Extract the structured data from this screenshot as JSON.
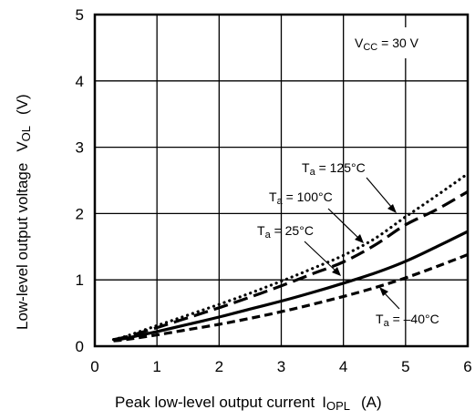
{
  "chart_data": {
    "type": "line",
    "xlabel": {
      "main": "Peak low-level output current",
      "symbol": "I",
      "symbol_sub": "OPL",
      "unit": "(A)"
    },
    "ylabel": {
      "main": "Low-level output voltage",
      "symbol": "V",
      "symbol_sub": "OL",
      "unit": "(V)"
    },
    "xlim": [
      0,
      6
    ],
    "ylim": [
      0,
      5
    ],
    "x_ticks": [
      "0",
      "1",
      "2",
      "3",
      "4",
      "5",
      "6"
    ],
    "y_ticks": [
      "0",
      "1",
      "2",
      "3",
      "4",
      "5"
    ],
    "grid": true,
    "condition": {
      "symbol": "V",
      "sub": "CC",
      "text": " = 30 V"
    },
    "series": [
      {
        "name": "Ta = 125°C",
        "name_parts": {
          "sym": "T",
          "sub": "a",
          "rest": " = 125°C"
        },
        "style": "dotted",
        "x": [
          0.3,
          0.5,
          1,
          1.5,
          2,
          2.5,
          3,
          3.5,
          4,
          4.5,
          5,
          5.5,
          6
        ],
        "y": [
          0.1,
          0.15,
          0.31,
          0.47,
          0.63,
          0.8,
          0.98,
          1.17,
          1.37,
          1.62,
          1.95,
          2.27,
          2.6
        ]
      },
      {
        "name": "Ta = 100°C",
        "name_parts": {
          "sym": "T",
          "sub": "a",
          "rest": " = 100°C"
        },
        "style": "long-dash",
        "x": [
          0.3,
          0.5,
          1,
          1.5,
          2,
          2.5,
          3,
          3.5,
          4,
          4.5,
          5,
          5.5,
          6
        ],
        "y": [
          0.1,
          0.14,
          0.28,
          0.43,
          0.58,
          0.74,
          0.91,
          1.09,
          1.27,
          1.52,
          1.83,
          2.06,
          2.33
        ]
      },
      {
        "name": "Ta = 25°C",
        "name_parts": {
          "sym": "T",
          "sub": "a",
          "rest": " = 25°C"
        },
        "style": "solid",
        "x": [
          0.3,
          0.5,
          1,
          1.5,
          2,
          2.5,
          3,
          3.5,
          4,
          4.5,
          5,
          5.5,
          6
        ],
        "y": [
          0.09,
          0.12,
          0.22,
          0.33,
          0.44,
          0.56,
          0.68,
          0.81,
          0.95,
          1.1,
          1.28,
          1.5,
          1.73
        ]
      },
      {
        "name": "Ta = –40°C",
        "name_parts": {
          "sym": "T",
          "sub": "a",
          "rest": " = –40°C"
        },
        "style": "short-dash",
        "x": [
          0.3,
          0.5,
          1,
          1.5,
          2,
          2.5,
          3,
          3.5,
          4,
          4.5,
          5,
          5.5,
          6
        ],
        "y": [
          0.08,
          0.1,
          0.17,
          0.25,
          0.33,
          0.42,
          0.52,
          0.63,
          0.75,
          0.88,
          1.03,
          1.2,
          1.38
        ]
      }
    ]
  }
}
